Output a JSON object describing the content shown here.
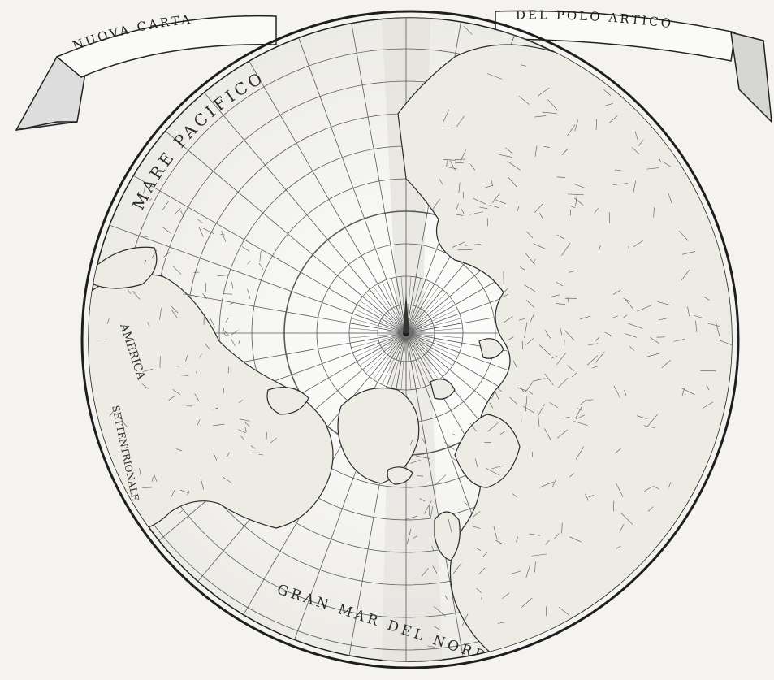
{
  "map": {
    "banner_left": "NUOVA CARTA",
    "banner_right": "DEL POLO ARTICO",
    "labels": {
      "mare_pacifico": "MARE PACIFICO",
      "gran_mar_del_nord": "GRAN MAR DEL NORD",
      "america": "AMERICA",
      "settentrionale": "SETTENTRIONALE"
    },
    "style": {
      "paper": "#f4f3ef",
      "ink": "#1e1e1e",
      "grid": "#555555",
      "land_ink": "#2a2a2a"
    }
  }
}
